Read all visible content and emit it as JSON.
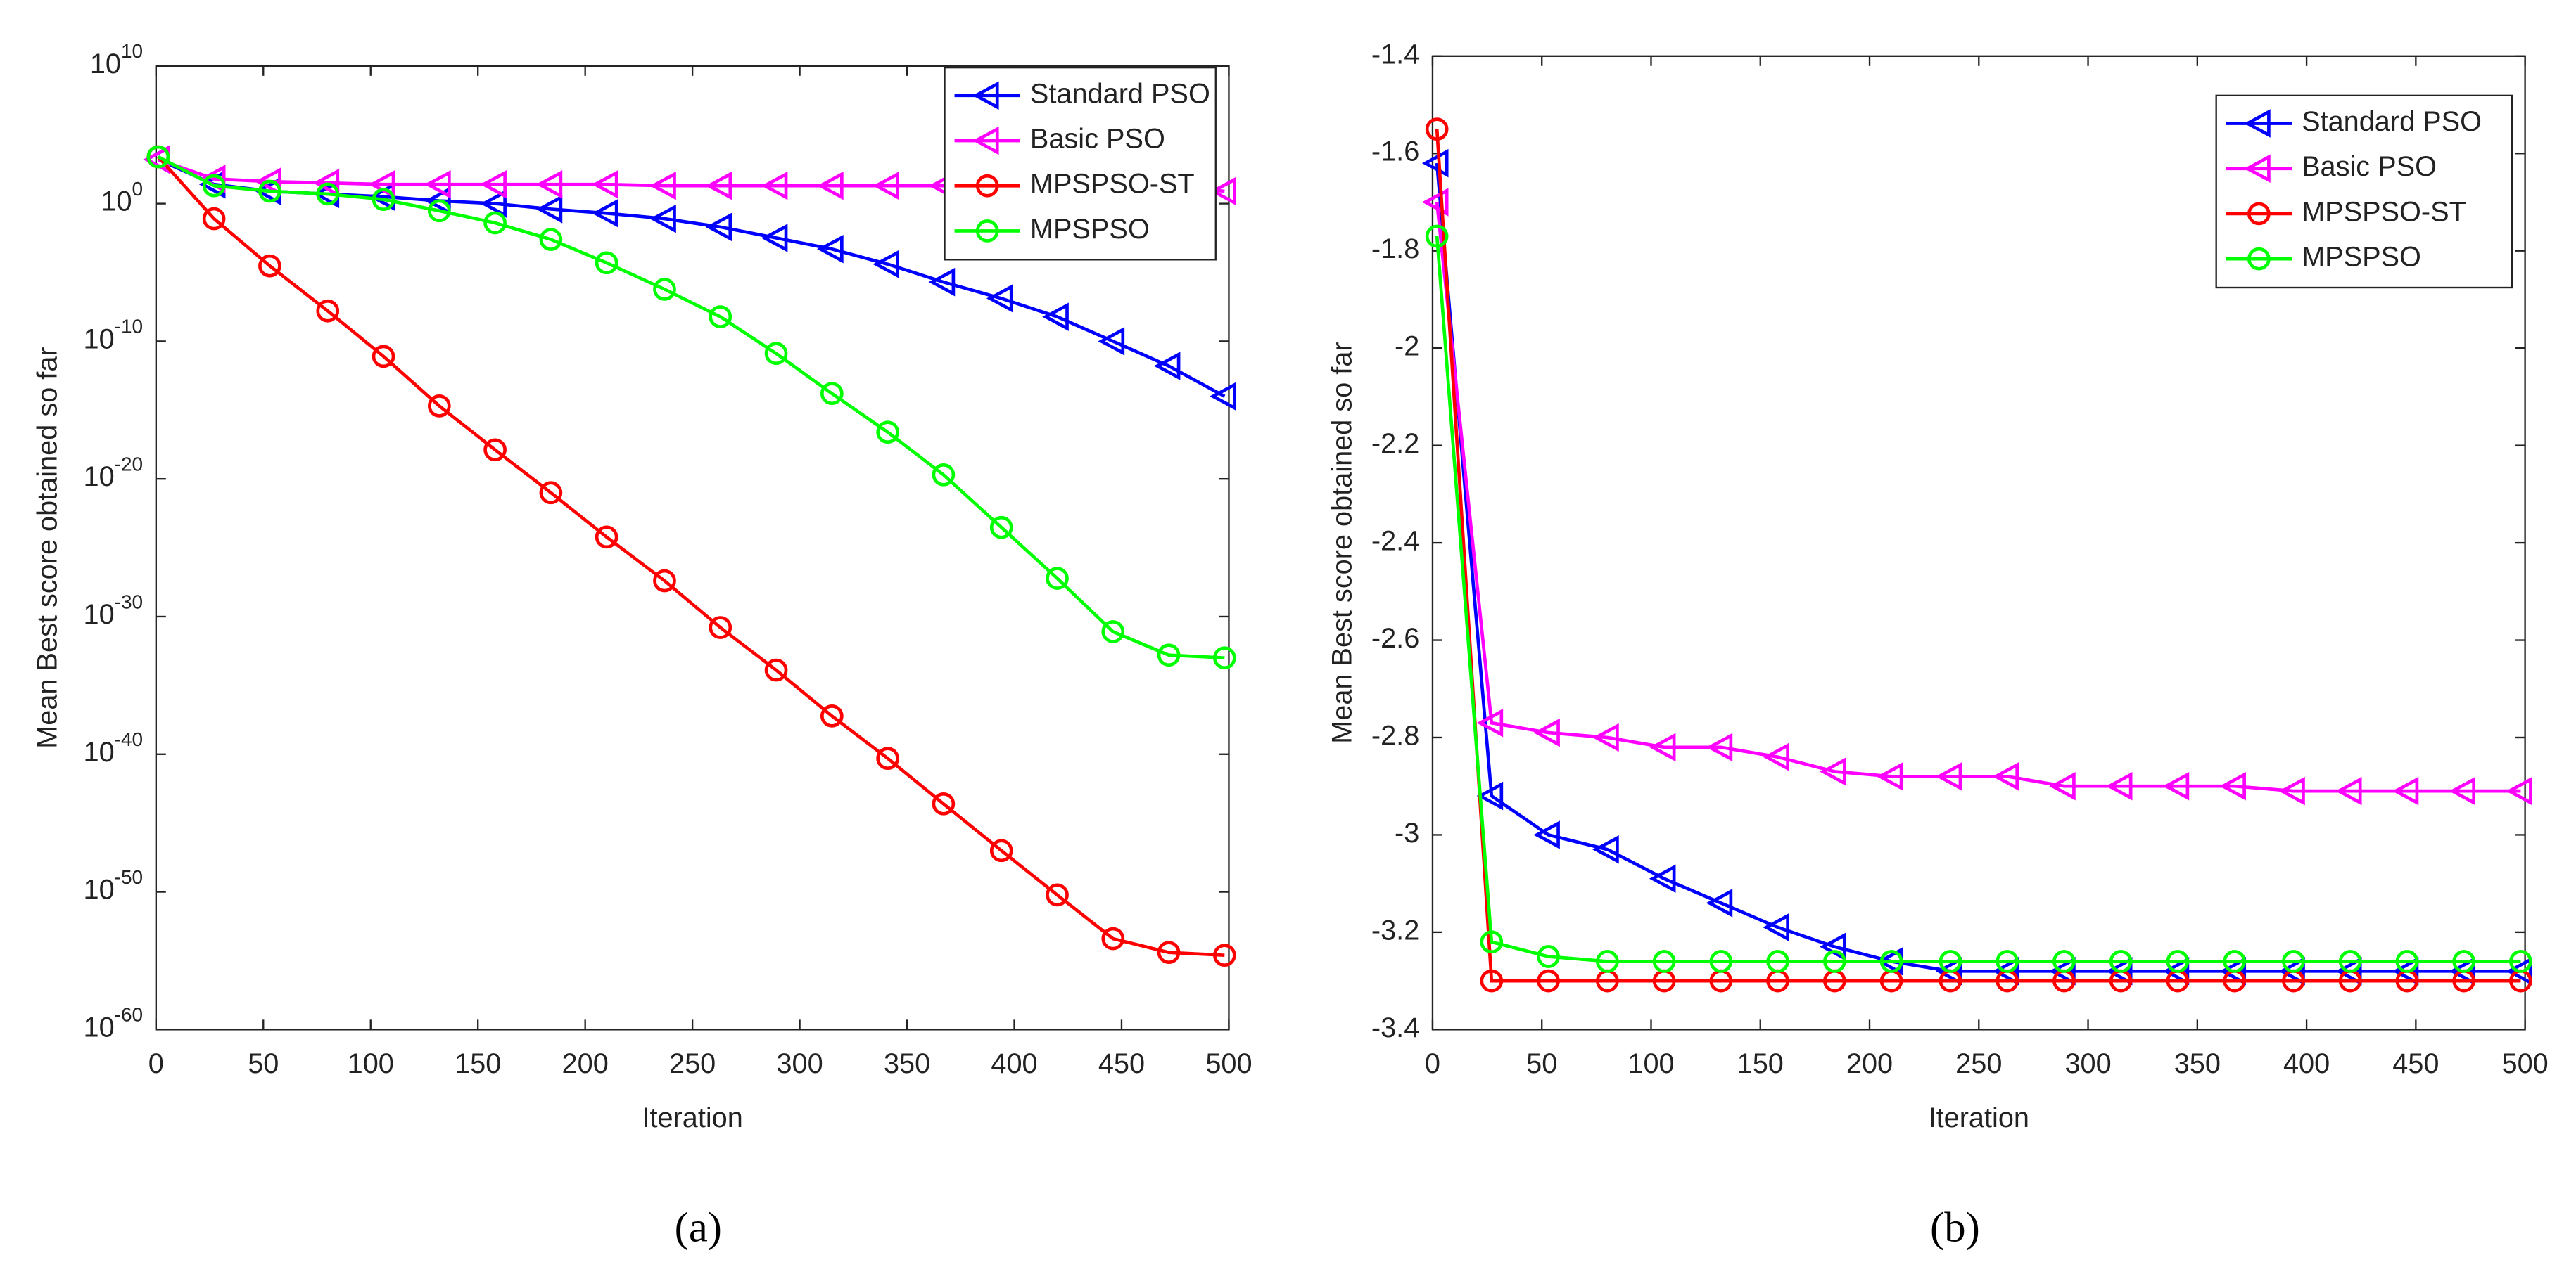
{
  "chart_data": [
    {
      "type": "line",
      "caption": "(a)",
      "xlabel": "Iteration",
      "ylabel": "Mean Best score obtained so far",
      "log_scale_y": true,
      "legend": "northeast",
      "x": [
        1,
        27,
        53,
        80,
        106,
        132,
        158,
        184,
        210,
        237,
        263,
        289,
        315,
        341,
        367,
        394,
        420,
        446,
        472,
        498
      ],
      "xlim": [
        0,
        500
      ],
      "xticks": [
        0,
        50,
        100,
        150,
        200,
        250,
        300,
        350,
        400,
        450,
        500
      ],
      "ylim": [
        1e-60,
        10000000000.0
      ],
      "yticks": [
        {
          "value": 1e-60,
          "label": "10^-60"
        },
        {
          "value": 1e-50,
          "label": "10^-50"
        },
        {
          "value": 1e-40,
          "label": "10^-40"
        },
        {
          "value": 1e-30,
          "label": "10^-30"
        },
        {
          "value": 1e-20,
          "label": "10^-20"
        },
        {
          "value": 1e-10,
          "label": "10^-10"
        },
        {
          "value": 1,
          "label": "10^0"
        },
        {
          "value": 10000000000.0,
          "label": "10^10"
        }
      ],
      "series": [
        {
          "name": "Standard PSO",
          "color": "#0000ff",
          "marker": "triangle",
          "values": [
            1600.0,
            25,
            8,
            5,
            3.2,
            1.6,
            1,
            0.4,
            0.2,
            0.08,
            0.02,
            0.0032,
            0.0005,
            4e-05,
            2e-06,
            1.3e-07,
            6e-09,
            1e-10,
            1.6e-12,
            1e-14
          ]
        },
        {
          "name": "Basic PSO",
          "color": "#ff00ff",
          "marker": "triangle",
          "values": [
            1600.0,
            63,
            40,
            32,
            25,
            25,
            25,
            25,
            25,
            20,
            20,
            20,
            20,
            20,
            20,
            20,
            20,
            20,
            20,
            8
          ]
        },
        {
          "name": "MPSPSO-ST",
          "color": "#ff0000",
          "marker": "circle",
          "values": [
            2500.0,
            0.08,
            3e-05,
            1.6e-08,
            8e-12,
            2e-15,
            1.3e-18,
            1e-21,
            6e-25,
            4e-28,
            1.6e-31,
            1.3e-34,
            6e-38,
            5e-41,
            2.5e-44,
            1e-47,
            6e-51,
            4e-54,
            4e-55,
            2.5e-55
          ]
        },
        {
          "name": "MPSPSO",
          "color": "#00ff00",
          "marker": "circle",
          "values": [
            2500.0,
            20,
            8,
            5,
            2,
            0.3,
            0.04,
            0.0025,
            5e-05,
            6e-07,
            6e-09,
            1.3e-11,
            1.6e-14,
            2.5e-17,
            2e-20,
            3e-24,
            6e-28,
            8e-32,
            1.6e-33,
            1e-33
          ]
        }
      ]
    },
    {
      "type": "line",
      "caption": "(b)",
      "xlabel": "Iteration",
      "ylabel": "Mean Best score obtained so far",
      "log_scale_y": false,
      "legend": "northeast",
      "x": [
        2,
        27,
        53,
        80,
        106,
        132,
        158,
        184,
        210,
        237,
        263,
        289,
        315,
        341,
        367,
        394,
        420,
        446,
        472,
        498
      ],
      "xlim": [
        0,
        500
      ],
      "xticks": [
        0,
        50,
        100,
        150,
        200,
        250,
        300,
        350,
        400,
        450,
        500
      ],
      "ylim": [
        -3.4,
        -1.4
      ],
      "yticks": [
        -3.4,
        -3.2,
        -3,
        -2.8,
        -2.6,
        -2.4,
        -2.2,
        -2,
        -1.8,
        -1.6,
        -1.4
      ],
      "series": [
        {
          "name": "Standard PSO",
          "color": "#0000ff",
          "marker": "triangle",
          "values": [
            -1.62,
            -2.92,
            -3.0,
            -3.03,
            -3.09,
            -3.14,
            -3.19,
            -3.23,
            -3.26,
            -3.28,
            -3.28,
            -3.28,
            -3.28,
            -3.28,
            -3.28,
            -3.28,
            -3.28,
            -3.28,
            -3.28,
            -3.28
          ]
        },
        {
          "name": "Basic PSO",
          "color": "#ff00ff",
          "marker": "triangle",
          "values": [
            -1.7,
            -2.77,
            -2.79,
            -2.8,
            -2.82,
            -2.82,
            -2.84,
            -2.87,
            -2.88,
            -2.88,
            -2.88,
            -2.9,
            -2.9,
            -2.9,
            -2.9,
            -2.91,
            -2.91,
            -2.91,
            -2.91,
            -2.91
          ]
        },
        {
          "name": "MPSPSO-ST",
          "color": "#ff0000",
          "marker": "circle",
          "values": [
            -1.55,
            -3.3,
            -3.3,
            -3.3,
            -3.3,
            -3.3,
            -3.3,
            -3.3,
            -3.3,
            -3.3,
            -3.3,
            -3.3,
            -3.3,
            -3.3,
            -3.3,
            -3.3,
            -3.3,
            -3.3,
            -3.3,
            -3.3
          ]
        },
        {
          "name": "MPSPSO",
          "color": "#00ff00",
          "marker": "circle",
          "values": [
            -1.77,
            -3.22,
            -3.25,
            -3.26,
            -3.26,
            -3.26,
            -3.26,
            -3.26,
            -3.26,
            -3.26,
            -3.26,
            -3.26,
            -3.26,
            -3.26,
            -3.26,
            -3.26,
            -3.26,
            -3.26,
            -3.26,
            -3.26
          ]
        }
      ]
    }
  ]
}
